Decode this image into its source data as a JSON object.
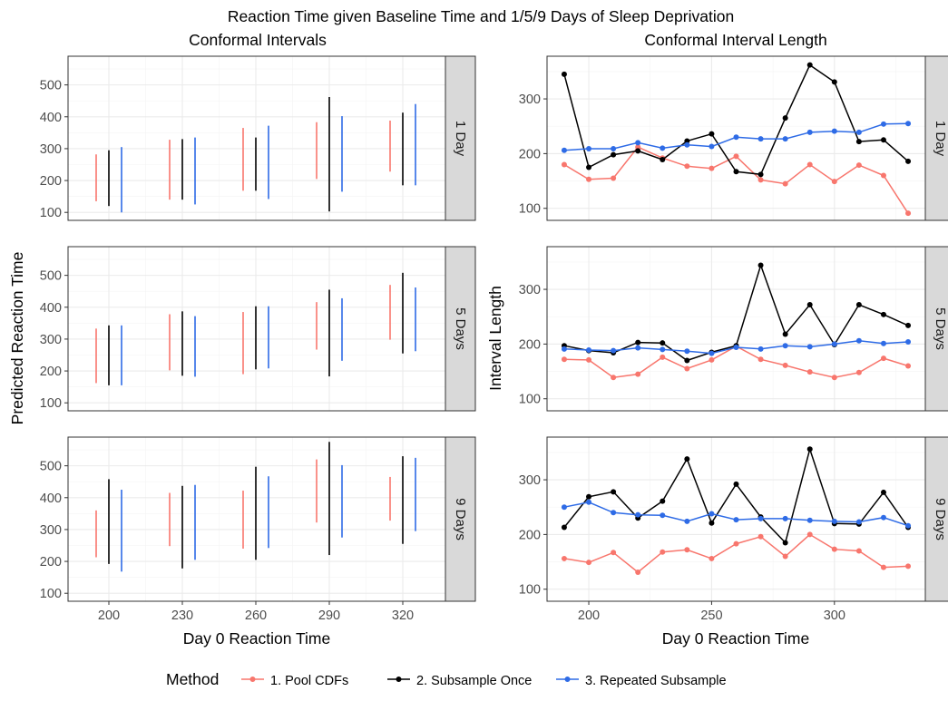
{
  "title": "Reaction Time given Baseline Time and 1/5/9 Days of Sleep Deprivation",
  "left_subtitle": "Conformal Intervals",
  "right_subtitle": "Conformal Interval Length",
  "left_ylabel": "Predicted Reaction Time",
  "right_ylabel": "Interval Length",
  "xlabel": "Day 0 Reaction Time",
  "legend": {
    "title": "Method",
    "placement": "bottom",
    "items": [
      {
        "label": "1. Pool CDFs",
        "color": "#F8766D"
      },
      {
        "label": "2. Subsample Once",
        "color": "#000000"
      },
      {
        "label": "3. Repeated Subsample",
        "color": "#2E6BE6"
      }
    ]
  },
  "chart_data": [
    {
      "type": "interval",
      "panel": "Conformal Intervals",
      "x_ticks": [
        200,
        230,
        260,
        290,
        320
      ],
      "y_ticks": [
        100,
        200,
        300,
        400,
        500
      ],
      "ylim": [
        75,
        590
      ],
      "facets": [
        {
          "strip": "1 Day",
          "series": [
            {
              "name": "1. Pool CDFs",
              "color": "#F8766D",
              "low": [
                135,
                140,
                168,
                205,
                228
              ],
              "high": [
                282,
                328,
                365,
                383,
                388
              ]
            },
            {
              "name": "2. Subsample Once",
              "color": "#000000",
              "low": [
                120,
                140,
                168,
                103,
                185
              ],
              "high": [
                295,
                330,
                335,
                462,
                413
              ]
            },
            {
              "name": "3. Repeated Subsample",
              "color": "#2E6BE6",
              "low": [
                100,
                125,
                142,
                165,
                185
              ],
              "high": [
                305,
                335,
                372,
                402,
                440
              ]
            }
          ]
        },
        {
          "strip": "5 Days",
          "series": [
            {
              "name": "1. Pool CDFs",
              "color": "#F8766D",
              "low": [
                162,
                202,
                190,
                267,
                298
              ],
              "high": [
                333,
                378,
                385,
                416,
                470
              ]
            },
            {
              "name": "2. Subsample Once",
              "color": "#000000",
              "low": [
                155,
                185,
                205,
                183,
                255
              ],
              "high": [
                343,
                387,
                403,
                455,
                508
              ]
            },
            {
              "name": "3. Repeated Subsample",
              "color": "#2E6BE6",
              "low": [
                155,
                182,
                208,
                232,
                262
              ],
              "high": [
                343,
                372,
                403,
                428,
                462
              ]
            }
          ]
        },
        {
          "strip": "9 Days",
          "series": [
            {
              "name": "1. Pool CDFs",
              "color": "#F8766D",
              "low": [
                213,
                248,
                240,
                322,
                328
              ],
              "high": [
                360,
                415,
                422,
                520,
                465
              ]
            },
            {
              "name": "2. Subsample Once",
              "color": "#000000",
              "low": [
                192,
                178,
                205,
                220,
                255
              ],
              "high": [
                458,
                437,
                497,
                575,
                530
              ]
            },
            {
              "name": "3. Repeated Subsample",
              "color": "#2E6BE6",
              "low": [
                168,
                205,
                242,
                275,
                295
              ],
              "high": [
                425,
                440,
                467,
                502,
                525
              ]
            }
          ]
        }
      ]
    },
    {
      "type": "line",
      "panel": "Conformal Interval Length",
      "x": [
        190,
        200,
        210,
        220,
        230,
        240,
        250,
        260,
        270,
        280,
        290,
        300,
        310,
        320,
        330
      ],
      "x_ticks": [
        200,
        250,
        300
      ],
      "y_ticks": [
        100,
        200,
        300
      ],
      "xlim": [
        183,
        337
      ],
      "ylim": [
        78,
        378
      ],
      "facets": [
        {
          "strip": "1 Day",
          "series": [
            {
              "name": "1. Pool CDFs",
              "color": "#F8766D",
              "values": [
                180,
                153,
                155,
                212,
                192,
                177,
                173,
                195,
                152,
                145,
                180,
                149,
                179,
                160,
                91
              ]
            },
            {
              "name": "2. Subsample Once",
              "color": "#000000",
              "values": [
                345,
                175,
                198,
                205,
                189,
                223,
                236,
                167,
                162,
                265,
                362,
                331,
                222,
                225,
                186
              ]
            },
            {
              "name": "3. Repeated Subsample",
              "color": "#2E6BE6",
              "values": [
                206,
                209,
                209,
                220,
                210,
                216,
                213,
                230,
                227,
                227,
                239,
                241,
                239,
                254,
                255
              ]
            }
          ]
        },
        {
          "strip": "5 Days",
          "series": [
            {
              "name": "1. Pool CDFs",
              "color": "#F8766D",
              "values": [
                172,
                171,
                139,
                145,
                176,
                155,
                171,
                196,
                172,
                161,
                149,
                139,
                148,
                174,
                160
              ]
            },
            {
              "name": "2. Subsample Once",
              "color": "#000000",
              "values": [
                197,
                188,
                184,
                203,
                202,
                170,
                185,
                197,
                344,
                218,
                272,
                199,
                272,
                254,
                234
              ]
            },
            {
              "name": "3. Repeated Subsample",
              "color": "#2E6BE6",
              "values": [
                191,
                189,
                188,
                193,
                190,
                187,
                183,
                194,
                191,
                197,
                195,
                200,
                206,
                201,
                204
              ]
            }
          ]
        },
        {
          "strip": "9 Days",
          "series": [
            {
              "name": "1. Pool CDFs",
              "color": "#F8766D",
              "values": [
                156,
                149,
                167,
                131,
                168,
                172,
                156,
                183,
                196,
                160,
                200,
                173,
                170,
                140,
                142
              ]
            },
            {
              "name": "2. Subsample Once",
              "color": "#000000",
              "values": [
                213,
                269,
                278,
                230,
                261,
                338,
                221,
                292,
                232,
                185,
                356,
                220,
                219,
                277,
                213
              ]
            },
            {
              "name": "3. Repeated Subsample",
              "color": "#2E6BE6",
              "values": [
                250,
                259,
                240,
                236,
                235,
                224,
                238,
                227,
                229,
                229,
                226,
                224,
                223,
                231,
                216
              ]
            }
          ]
        }
      ]
    }
  ]
}
